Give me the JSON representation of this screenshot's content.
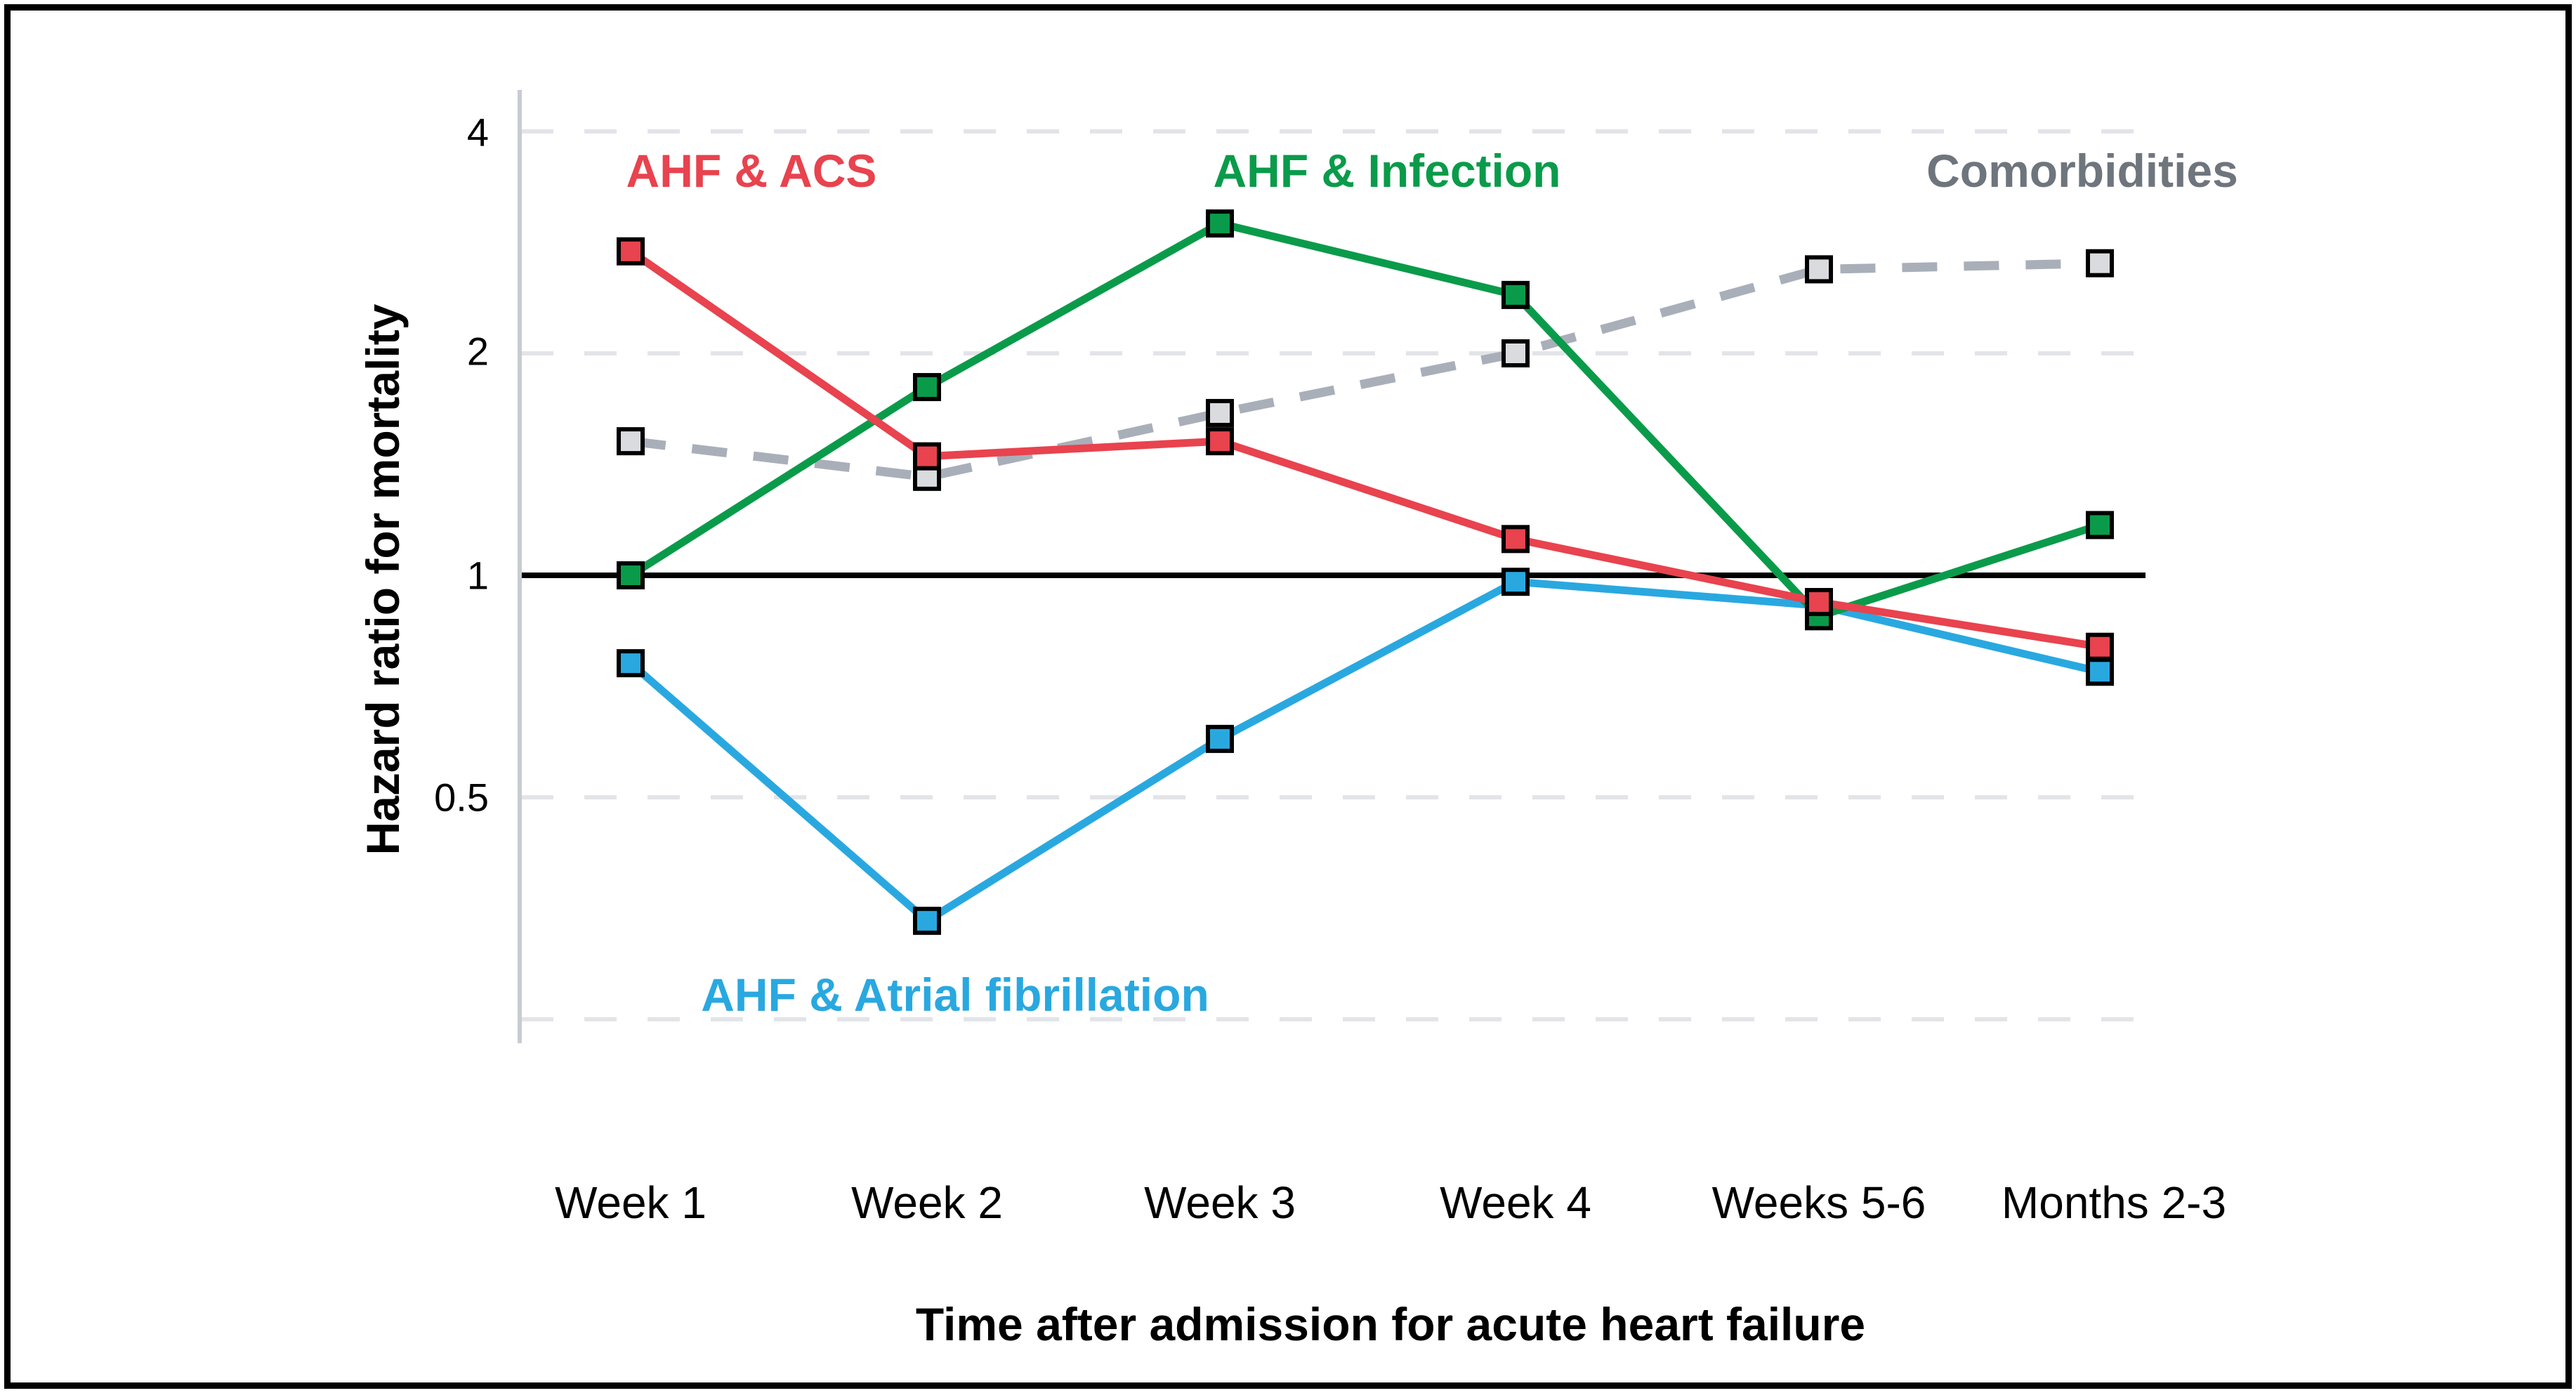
{
  "figure": {
    "y_tick_labels": [
      "4",
      "2",
      "1",
      "0.5"
    ],
    "background": "#ffffff",
    "frame_color": "#000000",
    "axis_line_color": "#c9cbd2",
    "gridline_color": "#e3e4e8",
    "reference_line_color": "#000000"
  },
  "chart_data": {
    "type": "line",
    "title": "",
    "xlabel": "Time after admission for acute heart failure",
    "ylabel": "Hazard ratio for  mortality",
    "categories": [
      "Week 1",
      "Week 2",
      "Week 3",
      "Week 4",
      "Weeks 5-6",
      "Months 2-3"
    ],
    "y_scale": "log2",
    "y_ticks": [
      4,
      2,
      1,
      0.5
    ],
    "y_gridlines_dashed": [
      4,
      2,
      0.5,
      0.25
    ],
    "reference_line": 1,
    "ylim": [
      0.22,
      4.6
    ],
    "grid": "horizontal dashed, light gray",
    "legend_position": "inline colored labels",
    "series": [
      {
        "name": "Comorbidities",
        "line_color": "#a9afb9",
        "marker_fill": "#d9dbde",
        "line_style": "dashed",
        "values": [
          1.52,
          1.36,
          1.66,
          2.0,
          2.6,
          2.65
        ]
      },
      {
        "name": "AHF & Atrial fibrillation",
        "line_color": "#29a8e0",
        "marker_fill": "#29a8e0",
        "line_style": "solid",
        "values": [
          0.76,
          0.34,
          0.6,
          0.98,
          0.91,
          0.74
        ]
      },
      {
        "name": "AHF & Infection",
        "line_color": "#0a9b4a",
        "marker_fill": "#0a9b4a",
        "line_style": "solid",
        "values": [
          1.0,
          1.8,
          3.0,
          2.4,
          0.88,
          1.17
        ]
      },
      {
        "name": "AHF & ACS",
        "line_color": "#e8434e",
        "marker_fill": "#e8434e",
        "line_style": "solid",
        "values": [
          2.75,
          1.45,
          1.52,
          1.12,
          0.92,
          0.8
        ]
      }
    ],
    "annotations": [
      {
        "text": "AHF & ACS",
        "color": "#e8434e"
      },
      {
        "text": "AHF & Infection",
        "color": "#0a9b4a"
      },
      {
        "text": "Comorbidities",
        "color": "#6e757c"
      },
      {
        "text": "AHF & Atrial fibrillation",
        "color": "#29a8e0"
      }
    ]
  }
}
